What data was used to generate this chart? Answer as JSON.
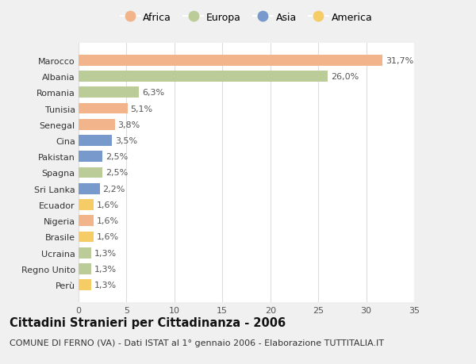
{
  "countries": [
    "Marocco",
    "Albania",
    "Romania",
    "Tunisia",
    "Senegal",
    "Cina",
    "Pakistan",
    "Spagna",
    "Sri Lanka",
    "Ecuador",
    "Nigeria",
    "Brasile",
    "Ucraina",
    "Regno Unito",
    "Perù"
  ],
  "values": [
    31.7,
    26.0,
    6.3,
    5.1,
    3.8,
    3.5,
    2.5,
    2.5,
    2.2,
    1.6,
    1.6,
    1.6,
    1.3,
    1.3,
    1.3
  ],
  "labels": [
    "31,7%",
    "26,0%",
    "6,3%",
    "5,1%",
    "3,8%",
    "3,5%",
    "2,5%",
    "2,5%",
    "2,2%",
    "1,6%",
    "1,6%",
    "1,6%",
    "1,3%",
    "1,3%",
    "1,3%"
  ],
  "continents": [
    "Africa",
    "Europa",
    "Europa",
    "Africa",
    "Africa",
    "Asia",
    "Asia",
    "Europa",
    "Asia",
    "America",
    "Africa",
    "America",
    "Europa",
    "Europa",
    "America"
  ],
  "colors": {
    "Africa": "#F2B48A",
    "Europa": "#BBCC99",
    "Asia": "#7799CC",
    "America": "#F5CC66"
  },
  "legend_order": [
    "Africa",
    "Europa",
    "Asia",
    "America"
  ],
  "xlim": [
    0,
    35
  ],
  "xticks": [
    0,
    5,
    10,
    15,
    20,
    25,
    30,
    35
  ],
  "title": "Cittadini Stranieri per Cittadinanza - 2006",
  "subtitle": "COMUNE DI FERNO (VA) - Dati ISTAT al 1° gennaio 2006 - Elaborazione TUTTITALIA.IT",
  "bg_color": "#f0f0f0",
  "plot_bg_color": "#ffffff",
  "bar_height": 0.68,
  "label_fontsize": 8,
  "tick_fontsize": 8,
  "title_fontsize": 10.5,
  "subtitle_fontsize": 8
}
